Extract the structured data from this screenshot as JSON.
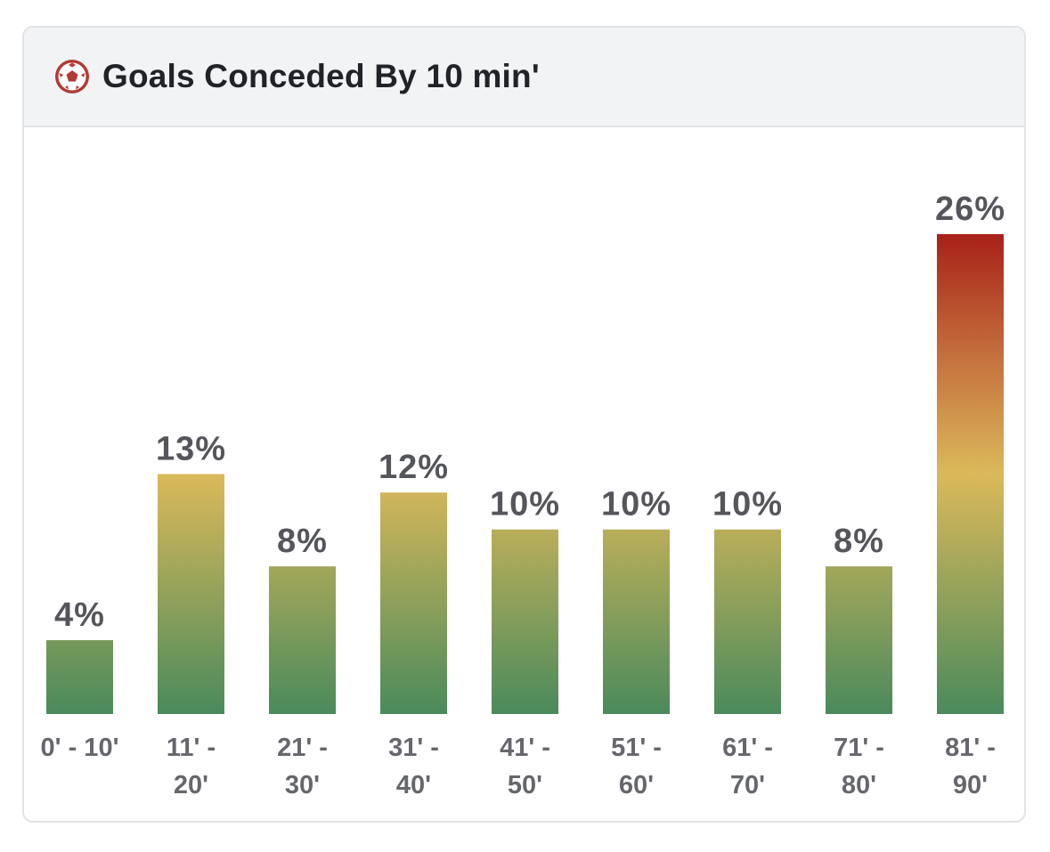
{
  "header": {
    "title": "Goals Conceded By 10 min'",
    "icon": "soccer-ball-icon"
  },
  "colors": {
    "bar_bottom": "#4a8a5b",
    "bar_mid": "#dbb95a",
    "bar_top_high": "#a82118",
    "icon": "#b23a35"
  },
  "chart_data": {
    "type": "bar",
    "title": "Goals Conceded By 10 min'",
    "categories": [
      [
        "0' - 10'"
      ],
      [
        "11' -",
        "20'"
      ],
      [
        "21' -",
        "30'"
      ],
      [
        "31' -",
        "40'"
      ],
      [
        "41' -",
        "50'"
      ],
      [
        "51' -",
        "60'"
      ],
      [
        "61' -",
        "70'"
      ],
      [
        "71' -",
        "80'"
      ],
      [
        "81' -",
        "90'"
      ]
    ],
    "values": [
      4,
      13,
      8,
      12,
      10,
      10,
      10,
      8,
      26
    ],
    "value_labels": [
      "4%",
      "13%",
      "8%",
      "12%",
      "10%",
      "10%",
      "10%",
      "8%",
      "26%"
    ],
    "unit": "%",
    "ylim": [
      0,
      26
    ],
    "grid": false,
    "legend": "none"
  }
}
